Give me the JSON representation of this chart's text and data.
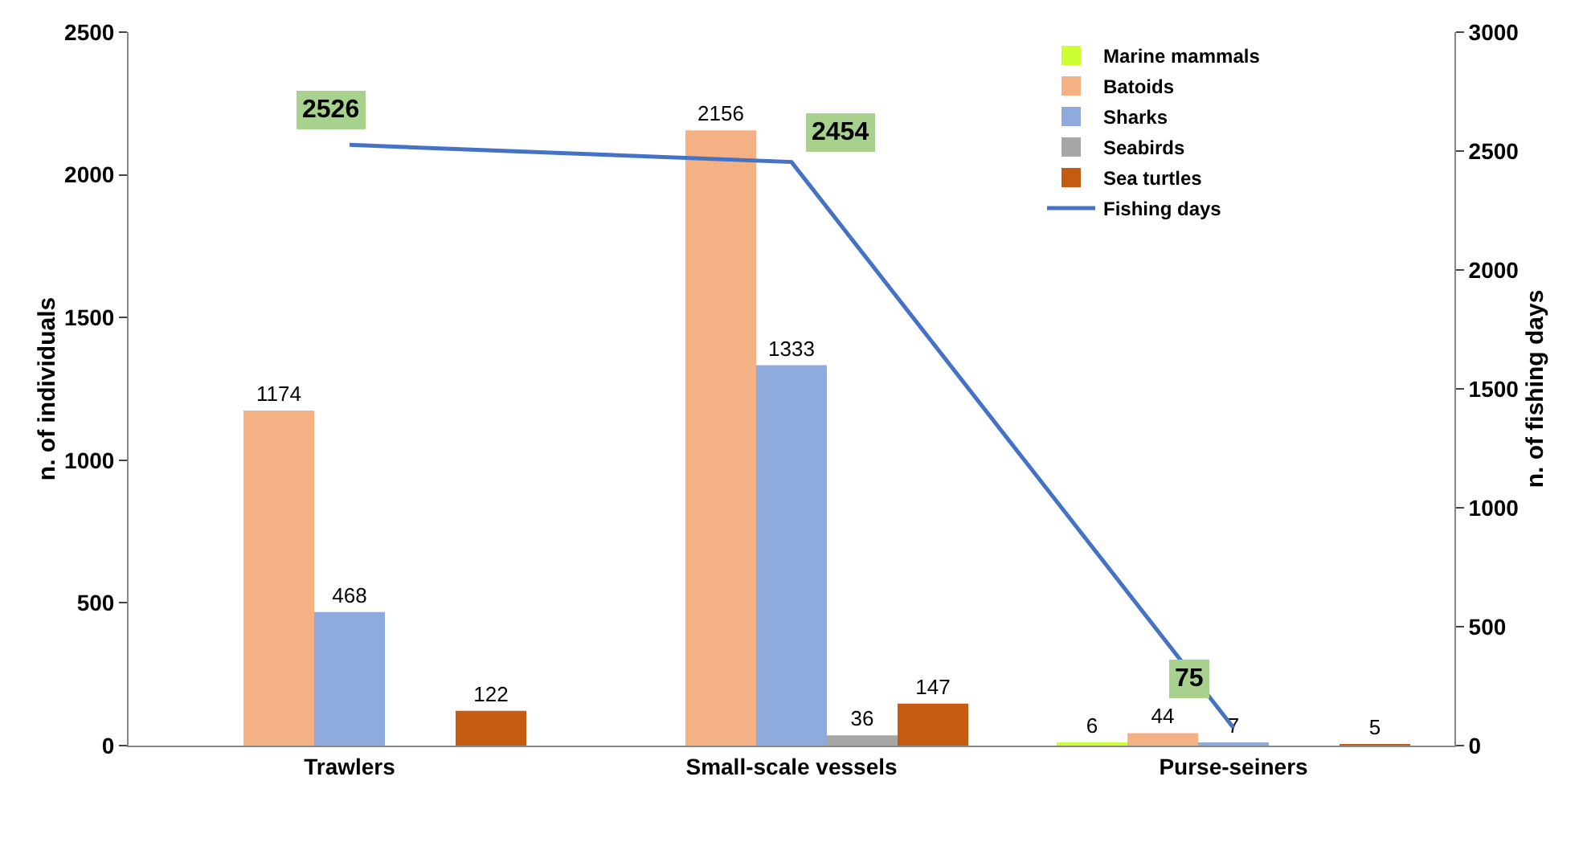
{
  "chart_data": {
    "type": "bar",
    "ylabel": "n. of individuals",
    "y2label": "n. of fishing days",
    "categories": [
      "Trawlers",
      "Small-scale vessels",
      "Purse-seiners"
    ],
    "series": [
      {
        "name": "Marine mammals",
        "color": "#ccff33",
        "values": [
          null,
          null,
          6
        ]
      },
      {
        "name": "Batoids",
        "color": "#f4b183",
        "values": [
          1174,
          2156,
          44
        ]
      },
      {
        "name": "Sharks",
        "color": "#8faadc",
        "values": [
          468,
          1333,
          7
        ]
      },
      {
        "name": "Seabirds",
        "color": "#a6a6a6",
        "values": [
          null,
          36,
          null
        ]
      },
      {
        "name": "Sea turtles",
        "color": "#c55a11",
        "values": [
          122,
          147,
          5
        ]
      },
      {
        "name": "Fishing days",
        "type": "line",
        "axis": "y2",
        "color": "#4472c4",
        "values": [
          2526,
          2454,
          75
        ]
      }
    ],
    "ylim": [
      0,
      2500
    ],
    "yticks": [
      0,
      500,
      1000,
      1500,
      2000,
      2500
    ],
    "y2lim": [
      0,
      3000
    ],
    "y2ticks": [
      0,
      500,
      1000,
      1500,
      2000,
      2500,
      3000
    ],
    "data_labels": true,
    "grid": false,
    "legend": "top right"
  }
}
